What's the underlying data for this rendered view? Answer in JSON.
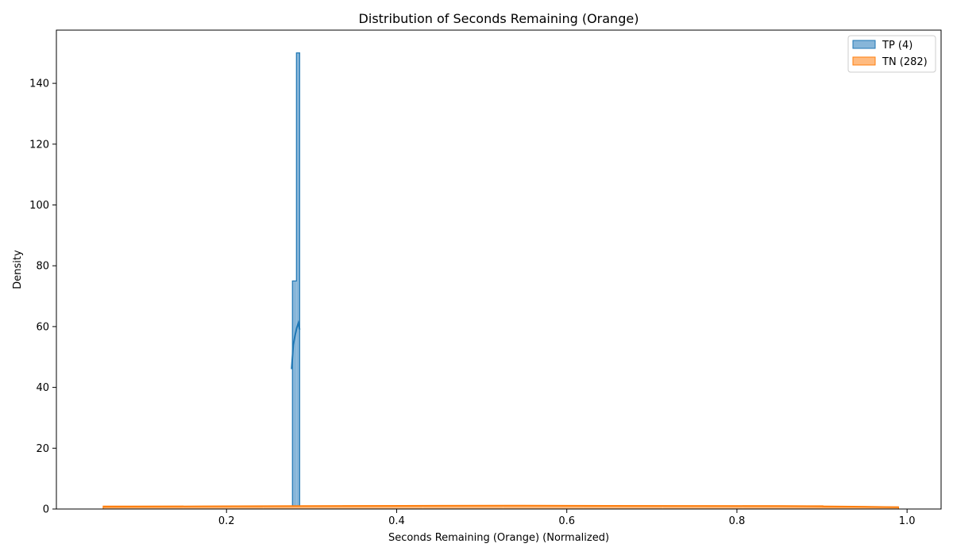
{
  "chart_data": {
    "type": "histogram",
    "title": "Distribution of Seconds Remaining (Orange)",
    "xlabel": "Seconds Remaining (Orange) (Normalized)",
    "ylabel": "Density",
    "xlim": [
      0.0,
      1.04
    ],
    "ylim": [
      0,
      157.5
    ],
    "xticks": [
      0.2,
      0.4,
      0.6,
      0.8,
      1.0
    ],
    "xtick_labels": [
      "0.2",
      "0.4",
      "0.6",
      "0.8",
      "1.0"
    ],
    "yticks": [
      0,
      20,
      40,
      60,
      80,
      100,
      120,
      140
    ],
    "ytick_labels": [
      "0",
      "20",
      "40",
      "60",
      "80",
      "100",
      "120",
      "140"
    ],
    "grid": false,
    "legend_position": "top-right",
    "series": [
      {
        "name": "TP (4)",
        "color": "#1f77b4",
        "fill": "#87b6d9",
        "bins": [
          {
            "x0": 0.2775,
            "x1": 0.2822,
            "density": 75
          },
          {
            "x0": 0.2822,
            "x1": 0.286,
            "density": 150
          }
        ],
        "kde": {
          "x": [
            0.2765,
            0.2785,
            0.2805,
            0.2825,
            0.2845,
            0.286
          ],
          "y": [
            46,
            54,
            57,
            59.5,
            61.2,
            59
          ]
        }
      },
      {
        "name": "TN (282)",
        "color": "#ff7f0e",
        "fill": "#ffbb80",
        "bins": [
          {
            "x0": 0.055,
            "x1": 0.149,
            "density": 0.95
          },
          {
            "x0": 0.149,
            "x1": 0.243,
            "density": 0.85
          },
          {
            "x0": 0.243,
            "x1": 0.337,
            "density": 1.0
          },
          {
            "x0": 0.337,
            "x1": 0.431,
            "density": 1.05
          },
          {
            "x0": 0.431,
            "x1": 0.525,
            "density": 1.15
          },
          {
            "x0": 0.525,
            "x1": 0.619,
            "density": 1.1
          },
          {
            "x0": 0.619,
            "x1": 0.713,
            "density": 1.0
          },
          {
            "x0": 0.713,
            "x1": 0.807,
            "density": 0.95
          },
          {
            "x0": 0.807,
            "x1": 0.901,
            "density": 1.05
          },
          {
            "x0": 0.901,
            "x1": 0.99,
            "density": 0.7
          }
        ],
        "kde": {
          "x": [
            0.055,
            0.15,
            0.25,
            0.35,
            0.45,
            0.55,
            0.65,
            0.75,
            0.85,
            0.95,
            0.99
          ],
          "y": [
            0.75,
            0.85,
            0.95,
            1.0,
            1.08,
            1.1,
            1.05,
            1.0,
            0.98,
            0.75,
            0.6
          ]
        }
      }
    ]
  }
}
